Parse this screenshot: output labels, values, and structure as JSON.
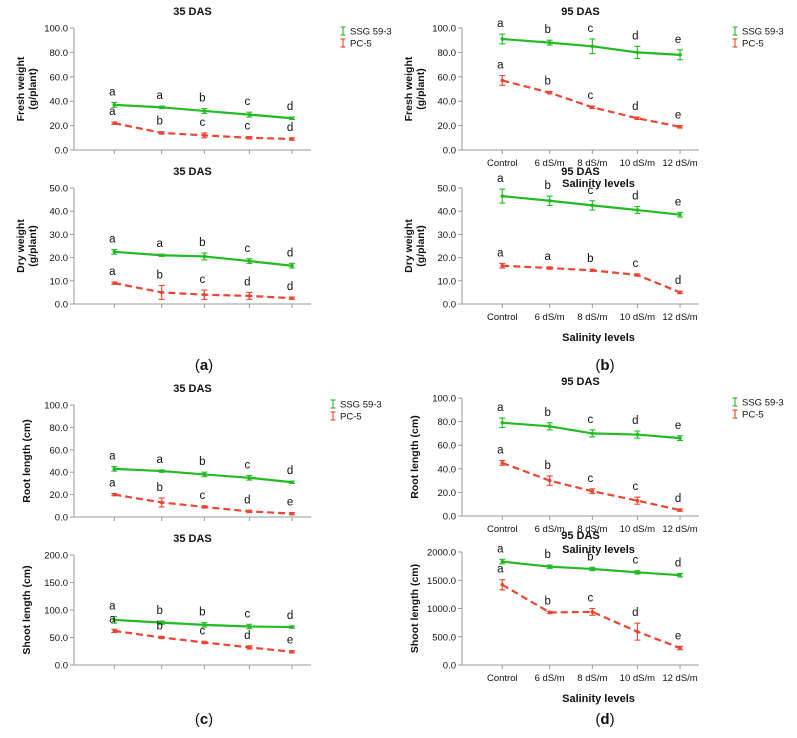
{
  "figure": {
    "xlabel": "Salinity levels",
    "categories": [
      "Control",
      "6 dS/m",
      "8 dS/m",
      "10 dS/m",
      "12 dS/m"
    ],
    "legend": {
      "series_a": "SSG 59-3",
      "series_b": "PC-5"
    },
    "colors": {
      "series_a": "#22bb22",
      "series_b": "#ee4433",
      "axis": "#999999",
      "text": "#111111"
    }
  },
  "chart_data": [
    {
      "panel": "(a)",
      "type": "line",
      "title": "35 DAS",
      "ylabel": "Fresh weight (g/plant)",
      "ylim": [
        0,
        100
      ],
      "yticks": [
        "0.0",
        "20.0",
        "40.0",
        "60.0",
        "80.0",
        "100.0"
      ],
      "show_xticks": false,
      "legend": true,
      "categories": [
        "Control",
        "6 dS/m",
        "8 dS/m",
        "10 dS/m",
        "12 dS/m"
      ],
      "series": [
        {
          "name": "SSG 59-3",
          "values": [
            37,
            35,
            32,
            29,
            26
          ],
          "errors": [
            2,
            1,
            2,
            2,
            1
          ],
          "letters": [
            "a",
            "a",
            "b",
            "c",
            "d"
          ]
        },
        {
          "name": "PC-5",
          "values": [
            22,
            14,
            12,
            10,
            9
          ],
          "errors": [
            1,
            1,
            2,
            1,
            1
          ],
          "letters": [
            "a",
            "b",
            "c",
            "c",
            "d"
          ]
        }
      ]
    },
    {
      "panel": "(a)",
      "type": "line",
      "title": "95 DAS",
      "ylabel": "Fresh weight (g/plant)",
      "ylim": [
        0,
        100
      ],
      "yticks": [
        "0.0",
        "20.0",
        "40.0",
        "60.0",
        "80.0",
        "100.0"
      ],
      "show_xticks": true,
      "legend": false,
      "xlabel": "Salinity levels",
      "categories": [
        "Control",
        "6 dS/m",
        "8 dS/m",
        "10 dS/m",
        "12 dS/m"
      ],
      "series": [
        {
          "name": "SSG 59-3",
          "values": [
            91,
            88,
            85,
            80,
            78
          ],
          "errors": [
            4,
            2,
            6,
            5,
            4
          ],
          "letters": [
            "a",
            "b",
            "c",
            "d",
            "e"
          ]
        },
        {
          "name": "PC-5",
          "values": [
            57,
            47,
            35,
            26,
            19
          ],
          "errors": [
            4,
            1,
            1,
            1,
            1
          ],
          "letters": [
            "a",
            "b",
            "c",
            "d",
            "e"
          ]
        }
      ]
    },
    {
      "panel": "(b)",
      "type": "line",
      "title": "35 DAS",
      "ylabel": "Dry weight (g/plant)",
      "ylim": [
        0,
        50
      ],
      "yticks": [
        "0.0",
        "10.0",
        "20.0",
        "30.0",
        "40.0",
        "50.0"
      ],
      "show_xticks": false,
      "legend": true,
      "categories": [
        "Control",
        "6 dS/m",
        "8 dS/m",
        "10 dS/m",
        "12 dS/m"
      ],
      "series": [
        {
          "name": "SSG 59-3",
          "values": [
            22.5,
            21,
            20.5,
            18.5,
            16.5
          ],
          "errors": [
            1,
            0.5,
            1.5,
            1,
            1
          ],
          "letters": [
            "a",
            "a",
            "b",
            "c",
            "d"
          ]
        },
        {
          "name": "PC-5",
          "values": [
            9,
            5,
            4,
            3.5,
            2.5
          ],
          "errors": [
            0.5,
            3,
            2,
            1.5,
            0.5
          ],
          "letters": [
            "a",
            "b",
            "c",
            "d",
            "d"
          ]
        }
      ]
    },
    {
      "panel": "(b)",
      "type": "line",
      "title": "95 DAS",
      "ylabel": "Dry weight (g/plant)",
      "ylim": [
        0,
        50
      ],
      "yticks": [
        "0.0",
        "10.0",
        "20.0",
        "30.0",
        "40.0",
        "50.0"
      ],
      "show_xticks": true,
      "legend": false,
      "xlabel": "Salinity levels",
      "categories": [
        "Control",
        "6 dS/m",
        "8 dS/m",
        "10 dS/m",
        "12 dS/m"
      ],
      "series": [
        {
          "name": "SSG 59-3",
          "values": [
            46.5,
            44.5,
            42.5,
            40.5,
            38.5
          ],
          "errors": [
            3,
            2,
            2,
            1.5,
            1
          ],
          "letters": [
            "a",
            "b",
            "c",
            "d",
            "e"
          ]
        },
        {
          "name": "PC-5",
          "values": [
            16.5,
            15.5,
            14.5,
            12.5,
            5
          ],
          "errors": [
            1,
            0.5,
            0.5,
            0.5,
            0.5
          ],
          "letters": [
            "a",
            "a",
            "b",
            "c",
            "d"
          ]
        }
      ]
    },
    {
      "panel": "(c)",
      "type": "line",
      "title": "35 DAS",
      "ylabel": "Root length (cm)",
      "ylim": [
        0,
        100
      ],
      "yticks": [
        "0.0",
        "20.0",
        "40.0",
        "60.0",
        "80.0",
        "100.0"
      ],
      "show_xticks": false,
      "legend": true,
      "categories": [
        "Control",
        "6 dS/m",
        "8 dS/m",
        "10 dS/m",
        "12 dS/m"
      ],
      "series": [
        {
          "name": "SSG 59-3",
          "values": [
            43,
            41,
            38,
            35,
            31
          ],
          "errors": [
            2,
            1,
            2,
            2,
            1
          ],
          "letters": [
            "a",
            "a",
            "b",
            "c",
            "d"
          ]
        },
        {
          "name": "PC-5",
          "values": [
            20,
            13,
            9,
            5,
            3
          ],
          "errors": [
            1,
            4,
            1,
            1,
            1
          ],
          "letters": [
            "a",
            "b",
            "c",
            "d",
            "e"
          ]
        }
      ]
    },
    {
      "panel": "(c)",
      "type": "line",
      "title": "95 DAS",
      "ylabel": "Root length (cm)",
      "ylim": [
        0,
        100
      ],
      "yticks": [
        "0.0",
        "20.0",
        "40.0",
        "60.0",
        "80.0",
        "100.0"
      ],
      "show_xticks": true,
      "legend": false,
      "xlabel": "Salinity levels",
      "categories": [
        "Control",
        "6 dS/m",
        "8 dS/m",
        "10 dS/m",
        "12 dS/m"
      ],
      "series": [
        {
          "name": "SSG 59-3",
          "values": [
            79,
            76,
            70,
            69,
            66
          ],
          "errors": [
            4,
            3,
            3,
            3,
            2
          ],
          "letters": [
            "a",
            "b",
            "c",
            "d",
            "e"
          ]
        },
        {
          "name": "PC-5",
          "values": [
            45,
            30,
            21,
            13,
            5
          ],
          "errors": [
            2,
            4,
            2,
            3,
            1
          ],
          "letters": [
            "a",
            "b",
            "c",
            "c",
            "d"
          ]
        }
      ]
    },
    {
      "panel": "(d)",
      "type": "line",
      "title": "35 DAS",
      "ylabel": "Shoot length (cm)",
      "ylim": [
        0,
        200
      ],
      "yticks": [
        "0.0",
        "50.0",
        "100.0",
        "150.0",
        "200.0"
      ],
      "show_xticks": false,
      "legend": true,
      "categories": [
        "Control",
        "6 dS/m",
        "8 dS/m",
        "10 dS/m",
        "12 dS/m"
      ],
      "series": [
        {
          "name": "SSG 59-3",
          "values": [
            82,
            77,
            73,
            70,
            69
          ],
          "errors": [
            6,
            3,
            4,
            4,
            2
          ],
          "letters": [
            "a",
            "b",
            "b",
            "c",
            "d"
          ]
        },
        {
          "name": "PC-5",
          "values": [
            62,
            50,
            41,
            32,
            24
          ],
          "errors": [
            3,
            2,
            2,
            3,
            2
          ],
          "letters": [
            "a",
            "b",
            "c",
            "d",
            "e"
          ]
        }
      ]
    },
    {
      "panel": "(d)",
      "type": "line",
      "title": "95 DAS",
      "ylabel": "Shoot length (cm)",
      "ylim": [
        0,
        2000
      ],
      "yticks": [
        "0.0",
        "500.0",
        "1000.0",
        "1500.0",
        "2000.0"
      ],
      "show_xticks": true,
      "legend": false,
      "xlabel": "Salinity levels",
      "categories": [
        "Control",
        "6 dS/m",
        "8 dS/m",
        "10 dS/m",
        "12 dS/m"
      ],
      "series": [
        {
          "name": "SSG 59-3",
          "values": [
            1830,
            1740,
            1700,
            1640,
            1590
          ],
          "errors": [
            40,
            30,
            30,
            30,
            30
          ],
          "letters": [
            "a",
            "b",
            "b",
            "c",
            "d"
          ]
        },
        {
          "name": "PC-5",
          "values": [
            1420,
            930,
            940,
            590,
            300
          ],
          "errors": [
            90,
            20,
            60,
            150,
            30
          ],
          "letters": [
            "a",
            "b",
            "c",
            "d",
            "e"
          ]
        }
      ]
    }
  ]
}
